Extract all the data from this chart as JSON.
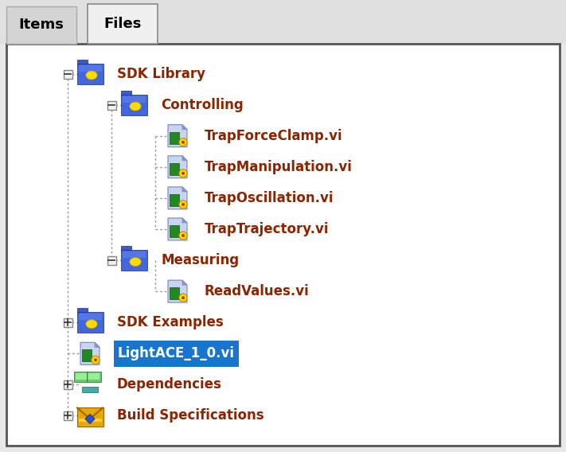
{
  "fig_w": 7.11,
  "fig_h": 5.68,
  "dpi": 100,
  "outer_bg": "#e8e8e8",
  "tab_bar_bg": "#e0e0e0",
  "content_bg": "#ffffff",
  "border_dark": "#666666",
  "border_light": "#ffffff",
  "text_color": "#8b2500",
  "highlight_bg": "#1874cd",
  "highlight_text": "#ffffff",
  "line_color": "#999999",
  "tab_items_text": "Items",
  "tab_files_text": "Files",
  "items": [
    {
      "level": 0,
      "label": "SDK Library",
      "type": "folder_open",
      "connector": "minus"
    },
    {
      "level": 1,
      "label": "Controlling",
      "type": "folder_open",
      "connector": "minus"
    },
    {
      "level": 2,
      "label": "TrapForceClamp.vi",
      "type": "vi_file",
      "connector": "mid"
    },
    {
      "level": 2,
      "label": "TrapManipulation.vi",
      "type": "vi_file",
      "connector": "mid"
    },
    {
      "level": 2,
      "label": "TrapOscillation.vi",
      "type": "vi_file",
      "connector": "mid"
    },
    {
      "level": 2,
      "label": "TrapTrajectory.vi",
      "type": "vi_file",
      "connector": "last"
    },
    {
      "level": 1,
      "label": "Measuring",
      "type": "folder_open",
      "connector": "minus"
    },
    {
      "level": 2,
      "label": "ReadValues.vi",
      "type": "vi_file",
      "connector": "last"
    },
    {
      "level": 0,
      "label": "SDK Examples",
      "type": "folder_closed",
      "connector": "plus"
    },
    {
      "level": 0,
      "label": "LightACE_1_0.vi",
      "type": "vi_file",
      "connector": "none",
      "highlight": true
    },
    {
      "level": 0,
      "label": "Dependencies",
      "type": "depend",
      "connector": "plus"
    },
    {
      "level": 0,
      "label": "Build Specifications",
      "type": "build",
      "connector": "plus"
    }
  ]
}
